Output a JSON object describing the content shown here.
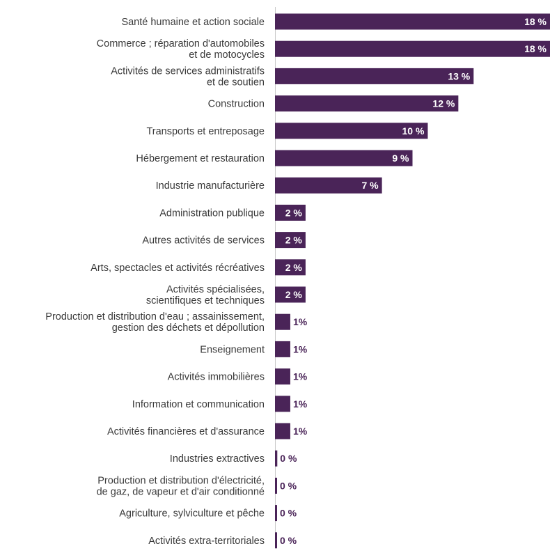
{
  "chart_data": {
    "type": "bar",
    "orientation": "horizontal",
    "bar_color": "#4a2458",
    "categories": [
      [
        "Santé humaine et action sociale"
      ],
      [
        "Commerce ; réparation d'automobiles",
        "et de motocycles"
      ],
      [
        "Activités de services administratifs",
        "et de soutien"
      ],
      [
        "Construction"
      ],
      [
        "Transports et entreposage"
      ],
      [
        "Hébergement et restauration"
      ],
      [
        "Industrie manufacturière"
      ],
      [
        "Administration publique"
      ],
      [
        "Autres activités de services"
      ],
      [
        "Arts, spectacles et activités récréatives"
      ],
      [
        "Activités spécialisées,",
        "scientifiques et techniques"
      ],
      [
        "Production et distribution d'eau ; assainissement,",
        "gestion des déchets et dépollution"
      ],
      [
        "Enseignement"
      ],
      [
        "Activités immobilières"
      ],
      [
        "Information et communication"
      ],
      [
        "Activités financières et d'assurance"
      ],
      [
        "Industries extractives"
      ],
      [
        "Production et distribution d'électricité,",
        "de gaz, de vapeur et d'air conditionné"
      ],
      [
        "Agriculture, sylviculture et pêche"
      ],
      [
        "Activités extra-territoriales"
      ]
    ],
    "values": [
      18,
      18,
      13,
      12,
      10,
      9,
      7,
      2,
      2,
      2,
      2,
      1,
      1,
      1,
      1,
      1,
      0.15,
      0.05,
      0.05,
      0.02
    ],
    "value_labels": [
      "18 %",
      "18 %",
      "13 %",
      "12 %",
      "10 %",
      "9 %",
      "7 %",
      "2 %",
      "2 %",
      "2 %",
      "2 %",
      "1%",
      "1%",
      "1%",
      "1%",
      "1%",
      "0 %",
      "0 %",
      "0 %",
      "0 %"
    ],
    "xlim": [
      0,
      18
    ],
    "grid": false,
    "legend": "none"
  }
}
